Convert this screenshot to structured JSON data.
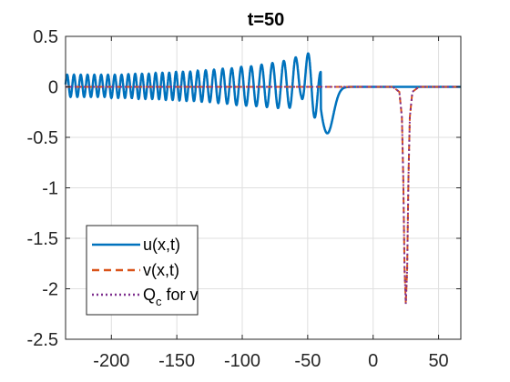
{
  "chart_data": {
    "type": "line",
    "title": "t=50",
    "xlabel": "",
    "ylabel": "",
    "xlim": [
      -235,
      67
    ],
    "ylim": [
      -2.5,
      0.5
    ],
    "xticks": [
      -200,
      -150,
      -100,
      -50,
      0,
      50
    ],
    "xtick_labels": [
      "-200",
      "-150",
      "-100",
      "-50",
      "0",
      "50"
    ],
    "yticks": [
      -2.5,
      -2,
      -1.5,
      -1,
      -0.5,
      0,
      0.5
    ],
    "ytick_labels": [
      "-2.5",
      "-2",
      "-1.5",
      "-1",
      "-0.5",
      "0",
      "0.5"
    ],
    "grid": true,
    "legend_position": "bottom-left",
    "series": [
      {
        "name": "u(x,t)",
        "color": "#0072BD",
        "style": "solid",
        "x": [
          -235,
          -230,
          -225,
          -220,
          -215,
          -210,
          -205,
          -200,
          -195,
          -190,
          -185,
          -180,
          -175,
          -170,
          -165,
          -160,
          -155,
          -150,
          -145,
          -140,
          -135,
          -130,
          -125,
          -120,
          -115,
          -110,
          -105,
          -100,
          -95,
          -90,
          -85,
          -80,
          -75,
          -70,
          -65,
          -60,
          -55,
          -50,
          -45,
          -40,
          -35,
          -30,
          -25,
          -20,
          -15,
          -10,
          -5,
          0,
          67
        ],
        "envelope_upper": [
          0.12,
          0.12,
          0.12,
          0.12,
          0.12,
          0.12,
          0.12,
          0.12,
          0.12,
          0.12,
          0.13,
          0.13,
          0.13,
          0.13,
          0.14,
          0.14,
          0.14,
          0.15,
          0.15,
          0.15,
          0.16,
          0.16,
          0.17,
          0.17,
          0.18,
          0.18,
          0.19,
          0.2,
          0.2,
          0.21,
          0.22,
          0.23,
          0.24,
          0.25,
          0.27,
          0.29,
          0.3,
          0.33,
          0.34,
          0.15,
          0.0,
          0.0,
          0.0,
          0.0,
          0.0,
          0.0,
          0.0,
          0.0,
          0.0
        ],
        "envelope_lower": [
          -0.1,
          -0.1,
          -0.1,
          -0.1,
          -0.1,
          -0.1,
          -0.1,
          -0.11,
          -0.11,
          -0.11,
          -0.11,
          -0.12,
          -0.12,
          -0.12,
          -0.12,
          -0.13,
          -0.13,
          -0.13,
          -0.14,
          -0.14,
          -0.14,
          -0.15,
          -0.15,
          -0.16,
          -0.16,
          -0.17,
          -0.18,
          -0.18,
          -0.19,
          -0.19,
          -0.2,
          -0.2,
          -0.21,
          -0.21,
          -0.21,
          -0.2,
          -0.1,
          -0.25,
          -0.3,
          -0.38,
          -0.46,
          -0.3,
          -0.12,
          -0.05,
          -0.02,
          -0.01,
          0.0,
          0.0,
          0.0
        ],
        "dip_center": -35,
        "dip_min": -0.46,
        "peak_last_x": -45,
        "peak_last_y": 0.34
      },
      {
        "name": "v(x,t)",
        "color": "#D95319",
        "style": "dashed",
        "x": [
          -235,
          15,
          20,
          22,
          23,
          24,
          25,
          26,
          27,
          28,
          30,
          35,
          67
        ],
        "y": [
          0,
          0,
          -0.05,
          -0.3,
          -0.9,
          -1.8,
          -2.15,
          -1.8,
          -0.9,
          -0.3,
          -0.05,
          0,
          0
        ]
      },
      {
        "name": "Q_c for v",
        "color": "#7E2F8E",
        "style": "dotted",
        "x": [
          -235,
          15,
          20,
          22,
          23,
          24,
          25,
          26,
          27,
          28,
          30,
          35,
          67
        ],
        "y": [
          0,
          0,
          -0.05,
          -0.3,
          -0.9,
          -1.8,
          -2.15,
          -1.8,
          -0.9,
          -0.3,
          -0.05,
          0,
          0
        ]
      }
    ],
    "legend": {
      "entries": [
        {
          "label": "u(x,t)"
        },
        {
          "label_main": "Q",
          "label_sub": "c",
          "label_rest": " for v"
        }
      ],
      "entry_v": "v(x,t)"
    }
  }
}
